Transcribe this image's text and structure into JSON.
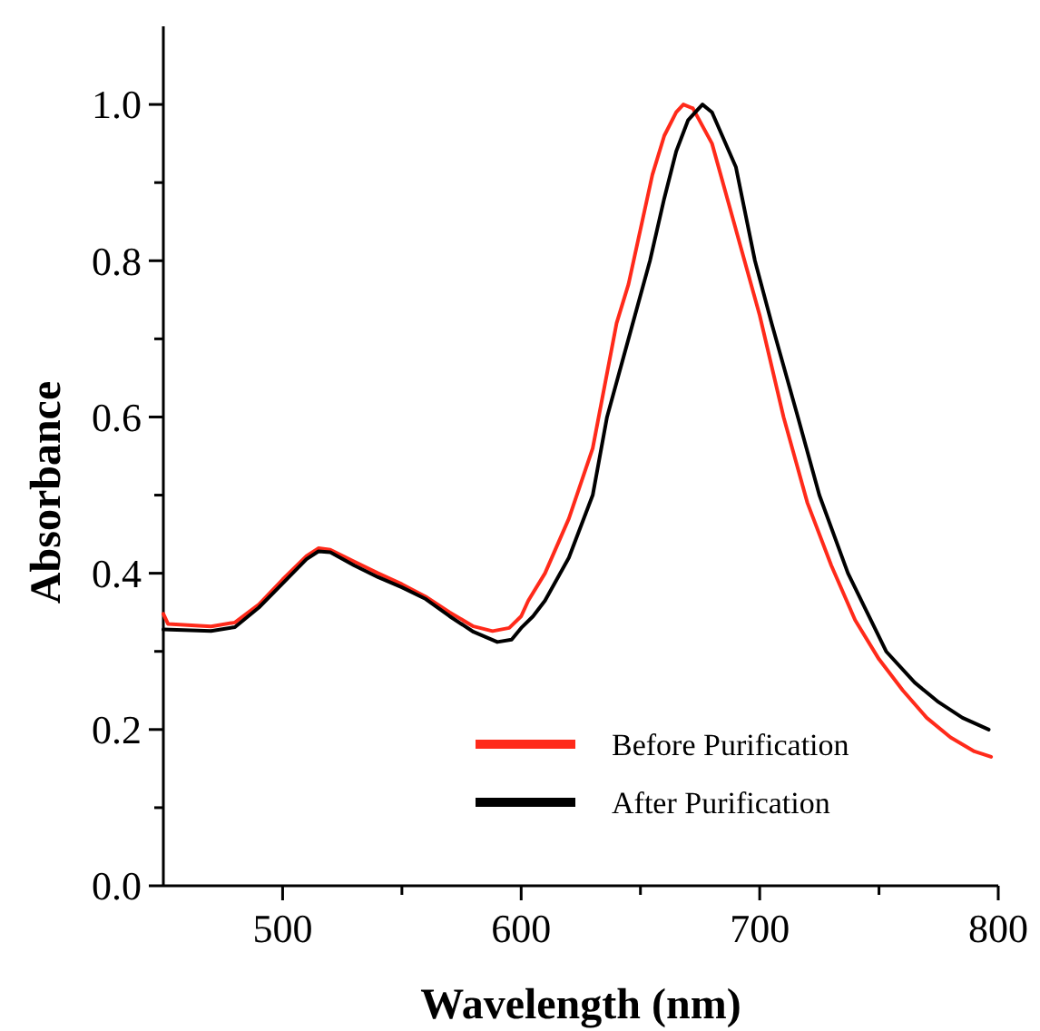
{
  "chart_data": {
    "type": "line",
    "xlabel": "Wavelength (nm)",
    "ylabel": "Absorbance",
    "xlim": [
      450,
      800
    ],
    "xticks": [
      {
        "value": 500,
        "label": "500"
      },
      {
        "value": 550,
        "label": null
      },
      {
        "value": 600,
        "label": "600"
      },
      {
        "value": 650,
        "label": null
      },
      {
        "value": 700,
        "label": "700"
      },
      {
        "value": 750,
        "label": null
      },
      {
        "value": 800,
        "label": "800"
      }
    ],
    "ylim": [
      0,
      1.1
    ],
    "yticks": [
      {
        "value": 0,
        "label": "0.0"
      },
      {
        "value": 0.1,
        "label": null
      },
      {
        "value": 0.2,
        "label": "0.2"
      },
      {
        "value": 0.3,
        "label": null
      },
      {
        "value": 0.4,
        "label": "0.4"
      },
      {
        "value": 0.5,
        "label": null
      },
      {
        "value": 0.6,
        "label": "0.6"
      },
      {
        "value": 0.7,
        "label": null
      },
      {
        "value": 0.8,
        "label": "0.8"
      },
      {
        "value": 0.9,
        "label": null
      },
      {
        "value": 1.0,
        "label": "1.0"
      }
    ],
    "grid": false,
    "legend": "bottom right",
    "marker": "none",
    "line_style": "solid",
    "series": [
      {
        "name": "Before Purification",
        "color": "#ff2a1a",
        "x": [
          450,
          452,
          470,
          480,
          490,
          500,
          510,
          515,
          520,
          530,
          540,
          550,
          560,
          570,
          580,
          588,
          595,
          600,
          603,
          610,
          620,
          630,
          640,
          645,
          650,
          655,
          660,
          665,
          668,
          672,
          680,
          690,
          700,
          710,
          720,
          730,
          740,
          750,
          760,
          770,
          780,
          790,
          797
        ],
        "values": [
          0.348,
          0.335,
          0.332,
          0.337,
          0.36,
          0.392,
          0.422,
          0.432,
          0.43,
          0.415,
          0.4,
          0.386,
          0.37,
          0.35,
          0.332,
          0.326,
          0.33,
          0.345,
          0.365,
          0.4,
          0.47,
          0.56,
          0.72,
          0.77,
          0.84,
          0.91,
          0.96,
          0.99,
          1.0,
          0.995,
          0.95,
          0.84,
          0.73,
          0.6,
          0.49,
          0.41,
          0.34,
          0.29,
          0.25,
          0.215,
          0.19,
          0.172,
          0.165
        ]
      },
      {
        "name": "After Purification",
        "color": "#000000",
        "x": [
          450,
          470,
          480,
          490,
          500,
          510,
          515,
          520,
          530,
          540,
          550,
          560,
          570,
          580,
          590,
          596,
          600,
          605,
          610,
          620,
          630,
          636,
          645,
          654,
          660,
          665,
          670,
          676,
          680,
          690,
          698,
          705,
          716,
          725,
          737,
          745,
          753,
          765,
          775,
          785,
          796
        ],
        "values": [
          0.328,
          0.326,
          0.331,
          0.356,
          0.387,
          0.418,
          0.428,
          0.427,
          0.41,
          0.395,
          0.382,
          0.367,
          0.345,
          0.325,
          0.312,
          0.315,
          0.33,
          0.345,
          0.365,
          0.42,
          0.5,
          0.6,
          0.7,
          0.8,
          0.88,
          0.94,
          0.98,
          1.0,
          0.99,
          0.92,
          0.8,
          0.72,
          0.6,
          0.5,
          0.4,
          0.35,
          0.3,
          0.26,
          0.235,
          0.215,
          0.2
        ]
      }
    ]
  }
}
